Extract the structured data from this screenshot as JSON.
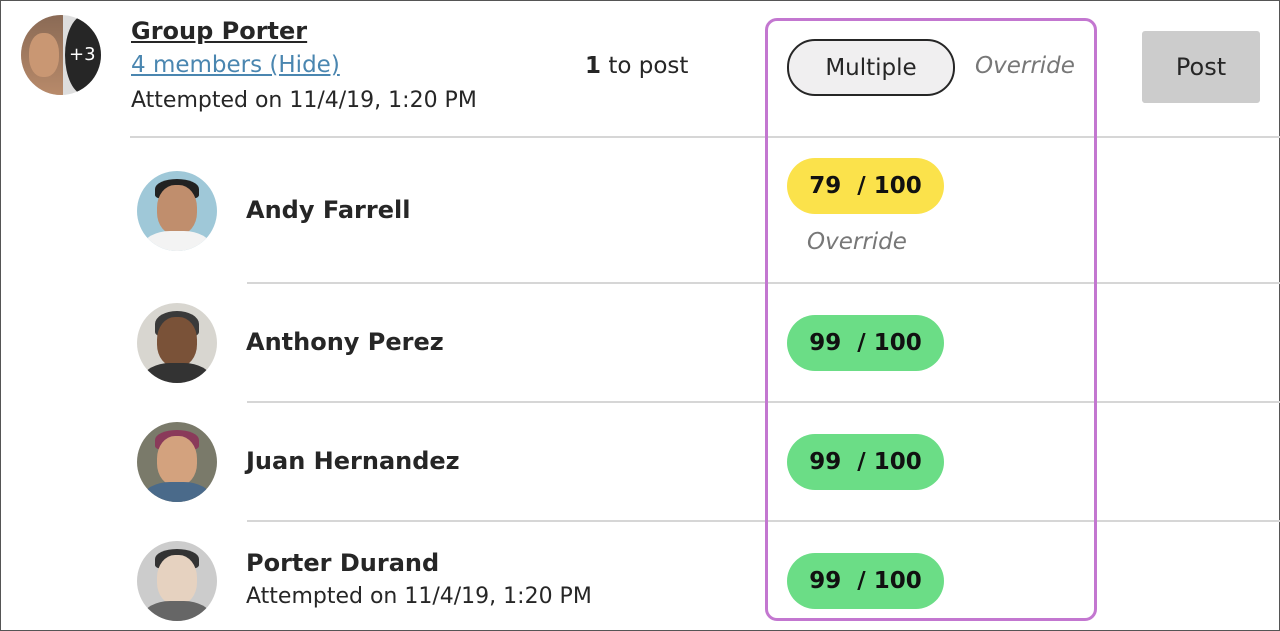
{
  "group": {
    "name": "Group Porter",
    "members_link": "4 members (Hide)",
    "attempted": "Attempted on 11/4/19, 1:20 PM",
    "more_count": "+3",
    "to_post_count": "1",
    "to_post_label": " to post",
    "grade_button": "Multiple",
    "override_label": "Override",
    "post_button": "Post"
  },
  "members": [
    {
      "name": "Andy Farrell",
      "score": "79",
      "total": "/ 100",
      "status_color": "#fbe24b",
      "override": "Override"
    },
    {
      "name": "Anthony Perez",
      "score": "99",
      "total": "/ 100",
      "status_color": "#6bdd86"
    },
    {
      "name": "Juan Hernandez",
      "score": "99",
      "total": "/ 100",
      "status_color": "#6bdd86"
    },
    {
      "name": "Porter Durand",
      "attempted": "Attempted on 11/4/19, 1:20 PM",
      "score": "99",
      "total": "/ 100",
      "status_color": "#6bdd86"
    }
  ],
  "highlight_color": "#c377d0"
}
